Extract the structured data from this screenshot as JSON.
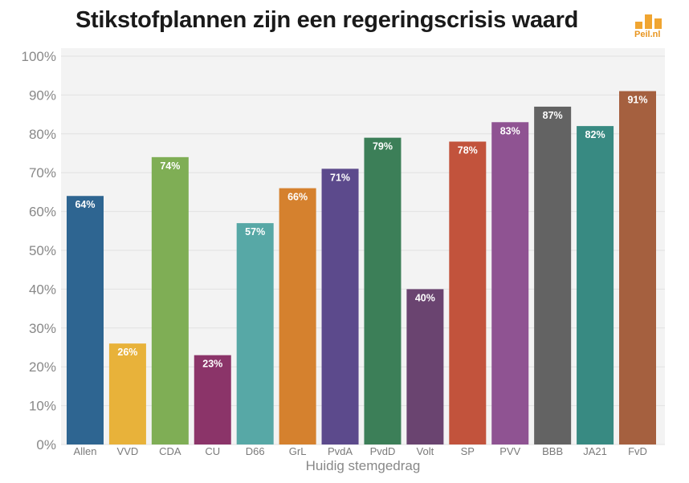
{
  "logo": {
    "brand_text": "Peil.nl",
    "color": "#f0a531"
  },
  "chart_data": {
    "type": "bar",
    "title": "Stikstofplannen zijn een regeringscrisis waard",
    "xlabel": "Huidig stemgedrag",
    "ylabel": "",
    "ylim": [
      0,
      100
    ],
    "yticks": [
      "0%",
      "10%",
      "20%",
      "30%",
      "40%",
      "50%",
      "60%",
      "70%",
      "80%",
      "90%",
      "100%"
    ],
    "grid": true,
    "categories": [
      "Allen",
      "VVD",
      "CDA",
      "CU",
      "D66",
      "GrL",
      "PvdA",
      "PvdD",
      "Volt",
      "SP",
      "PVV",
      "BBB",
      "JA21",
      "FvD"
    ],
    "values": [
      64,
      26,
      74,
      23,
      57,
      66,
      71,
      79,
      40,
      78,
      83,
      87,
      82,
      91
    ],
    "data_labels": [
      "64%",
      "26%",
      "74%",
      "23%",
      "57%",
      "66%",
      "71%",
      "79%",
      "40%",
      "78%",
      "83%",
      "87%",
      "82%",
      "91%"
    ],
    "colors": [
      "#2e6591",
      "#e8b23a",
      "#7fae55",
      "#8b3469",
      "#57a8a6",
      "#d5812e",
      "#5c4a8c",
      "#3c7f58",
      "#6a4470",
      "#c2533c",
      "#8f5392",
      "#636363",
      "#388a82",
      "#a5603f"
    ]
  }
}
